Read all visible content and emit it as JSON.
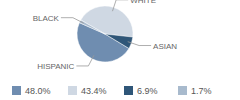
{
  "chart_data": {
    "type": "pie",
    "categories": [
      "HISPANIC",
      "WHITE",
      "ASIAN",
      "BLACK"
    ],
    "values": [
      48.0,
      43.4,
      6.9,
      1.7
    ],
    "value_labels": [
      "48.0%",
      "43.4%",
      "6.9%",
      "1.7%"
    ],
    "colors": [
      "#6f8db0",
      "#cfd8e3",
      "#2f5678",
      "#a8bacd"
    ],
    "legend": "bottom"
  }
}
